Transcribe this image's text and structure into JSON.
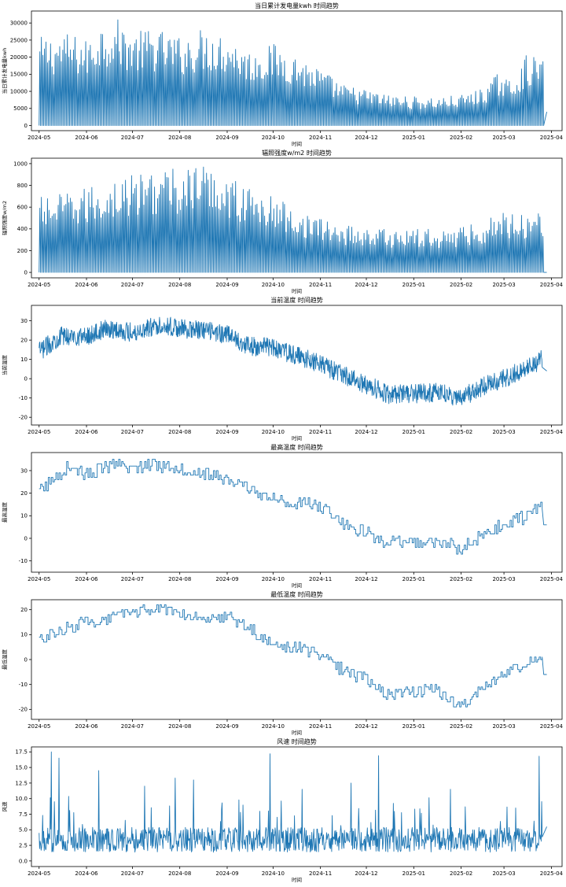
{
  "chart_data": [
    {
      "type": "line",
      "title": "当日累计发电量kwh 时间趋势",
      "xlabel": "时间",
      "ylabel": "当日累计发电量kwh",
      "xticks": [
        "2024-05",
        "2024-06",
        "2024-07",
        "2024-08",
        "2024-09",
        "2024-10",
        "2024-11",
        "2024-12",
        "2025-01",
        "2025-02",
        "2025-03",
        "2025-04"
      ],
      "xlim": [
        "2024-04-26",
        "2025-04-08"
      ],
      "ylim": [
        -1500,
        33500
      ],
      "yticks": [
        0,
        5000,
        10000,
        15000,
        20000,
        25000,
        30000
      ],
      "grid": false,
      "style": "daily-cycle",
      "envelope": [
        {
          "x": "2024-05-01",
          "y": 26000
        },
        {
          "x": "2024-05-20",
          "y": 27000
        },
        {
          "x": "2024-06-01",
          "y": 25000
        },
        {
          "x": "2024-06-10",
          "y": 30500
        },
        {
          "x": "2024-06-20",
          "y": 31500
        },
        {
          "x": "2024-07-01",
          "y": 27500
        },
        {
          "x": "2024-07-15",
          "y": 28500
        },
        {
          "x": "2024-08-01",
          "y": 26000
        },
        {
          "x": "2024-08-15",
          "y": 28500
        },
        {
          "x": "2024-09-01",
          "y": 27000
        },
        {
          "x": "2024-09-15",
          "y": 22000
        },
        {
          "x": "2024-10-01",
          "y": 24000
        },
        {
          "x": "2024-10-15",
          "y": 21000
        },
        {
          "x": "2024-11-01",
          "y": 16500
        },
        {
          "x": "2024-11-15",
          "y": 12000
        },
        {
          "x": "2024-12-01",
          "y": 10500
        },
        {
          "x": "2024-12-15",
          "y": 9000
        },
        {
          "x": "2025-01-01",
          "y": 8500
        },
        {
          "x": "2025-01-15",
          "y": 8200
        },
        {
          "x": "2025-02-01",
          "y": 9000
        },
        {
          "x": "2025-02-15",
          "y": 11000
        },
        {
          "x": "2025-02-25",
          "y": 15500
        },
        {
          "x": "2025-03-05",
          "y": 13000
        },
        {
          "x": "2025-03-15",
          "y": 20500
        },
        {
          "x": "2025-03-26",
          "y": 20000
        }
      ],
      "end_value": 4000
    },
    {
      "type": "line",
      "title": "辐照强度w/m2 时间趋势",
      "xlabel": "时间",
      "ylabel": "辐照强度w/m2",
      "xticks": [
        "2024-05",
        "2024-06",
        "2024-07",
        "2024-08",
        "2024-09",
        "2024-10",
        "2024-11",
        "2024-12",
        "2025-01",
        "2025-02",
        "2025-03",
        "2025-04"
      ],
      "xlim": [
        "2024-04-26",
        "2025-04-08"
      ],
      "ylim": [
        -50,
        1050
      ],
      "yticks": [
        0,
        200,
        400,
        600,
        800,
        1000
      ],
      "grid": false,
      "style": "daily-cycle",
      "envelope": [
        {
          "x": "2024-05-01",
          "y": 700
        },
        {
          "x": "2024-05-15",
          "y": 720
        },
        {
          "x": "2024-06-01",
          "y": 780
        },
        {
          "x": "2024-06-15",
          "y": 850
        },
        {
          "x": "2024-07-01",
          "y": 900
        },
        {
          "x": "2024-07-15",
          "y": 960
        },
        {
          "x": "2024-08-01",
          "y": 950
        },
        {
          "x": "2024-08-15",
          "y": 1000
        },
        {
          "x": "2024-09-01",
          "y": 900
        },
        {
          "x": "2024-09-15",
          "y": 780
        },
        {
          "x": "2024-10-01",
          "y": 700
        },
        {
          "x": "2024-10-15",
          "y": 600
        },
        {
          "x": "2024-11-01",
          "y": 500
        },
        {
          "x": "2024-11-15",
          "y": 450
        },
        {
          "x": "2024-12-01",
          "y": 420
        },
        {
          "x": "2024-12-15",
          "y": 400
        },
        {
          "x": "2025-01-01",
          "y": 400
        },
        {
          "x": "2025-01-15",
          "y": 400
        },
        {
          "x": "2025-02-01",
          "y": 420
        },
        {
          "x": "2025-02-15",
          "y": 480
        },
        {
          "x": "2025-03-01",
          "y": 570
        },
        {
          "x": "2025-03-15",
          "y": 560
        },
        {
          "x": "2025-03-26",
          "y": 600
        }
      ],
      "end_value": 0
    },
    {
      "type": "line",
      "title": "当前温度 时间趋势",
      "xlabel": "时间",
      "ylabel": "当前温度",
      "xticks": [
        "2024-05",
        "2024-06",
        "2024-07",
        "2024-08",
        "2024-09",
        "2024-10",
        "2024-11",
        "2024-12",
        "2025-01",
        "2025-02",
        "2025-03",
        "2025-04"
      ],
      "xlim": [
        "2024-04-26",
        "2025-04-08"
      ],
      "ylim": [
        -24,
        38
      ],
      "yticks": [
        -20,
        -10,
        0,
        10,
        20,
        30
      ],
      "grid": false,
      "style": "noisy",
      "amplitude": 5,
      "trend": [
        {
          "x": "2024-05-01",
          "y": 14
        },
        {
          "x": "2024-05-15",
          "y": 22
        },
        {
          "x": "2024-06-01",
          "y": 22
        },
        {
          "x": "2024-06-15",
          "y": 26
        },
        {
          "x": "2024-07-01",
          "y": 24
        },
        {
          "x": "2024-07-20",
          "y": 28
        },
        {
          "x": "2024-08-01",
          "y": 26
        },
        {
          "x": "2024-08-15",
          "y": 25
        },
        {
          "x": "2024-09-01",
          "y": 23
        },
        {
          "x": "2024-09-15",
          "y": 17
        },
        {
          "x": "2024-10-01",
          "y": 16
        },
        {
          "x": "2024-10-15",
          "y": 12
        },
        {
          "x": "2024-11-01",
          "y": 8
        },
        {
          "x": "2024-11-15",
          "y": 2
        },
        {
          "x": "2024-12-01",
          "y": -3
        },
        {
          "x": "2024-12-15",
          "y": -8
        },
        {
          "x": "2025-01-01",
          "y": -8
        },
        {
          "x": "2025-01-15",
          "y": -7
        },
        {
          "x": "2025-02-01",
          "y": -10
        },
        {
          "x": "2025-02-15",
          "y": -4
        },
        {
          "x": "2025-03-01",
          "y": 0
        },
        {
          "x": "2025-03-15",
          "y": 5
        },
        {
          "x": "2025-03-26",
          "y": 10
        }
      ],
      "end_value": 4
    },
    {
      "type": "line",
      "title": "最高温度 时间趋势",
      "xlabel": "时间",
      "ylabel": "最高温度",
      "xticks": [
        "2024-05",
        "2024-06",
        "2024-07",
        "2024-08",
        "2024-09",
        "2024-10",
        "2024-11",
        "2024-12",
        "2025-01",
        "2025-02",
        "2025-03",
        "2025-04"
      ],
      "xlim": [
        "2024-04-26",
        "2025-04-08"
      ],
      "ylim": [
        -15,
        38
      ],
      "yticks": [
        -10,
        0,
        10,
        20,
        30
      ],
      "grid": false,
      "style": "step",
      "amplitude": 3,
      "trend": [
        {
          "x": "2024-05-01",
          "y": 21
        },
        {
          "x": "2024-05-10",
          "y": 26
        },
        {
          "x": "2024-05-20",
          "y": 32
        },
        {
          "x": "2024-06-01",
          "y": 28
        },
        {
          "x": "2024-06-15",
          "y": 32
        },
        {
          "x": "2024-07-01",
          "y": 31
        },
        {
          "x": "2024-07-15",
          "y": 33
        },
        {
          "x": "2024-08-01",
          "y": 31
        },
        {
          "x": "2024-08-15",
          "y": 29
        },
        {
          "x": "2024-09-01",
          "y": 26
        },
        {
          "x": "2024-09-15",
          "y": 22
        },
        {
          "x": "2024-10-01",
          "y": 17
        },
        {
          "x": "2024-10-15",
          "y": 16
        },
        {
          "x": "2024-11-01",
          "y": 14
        },
        {
          "x": "2024-11-15",
          "y": 7
        },
        {
          "x": "2024-12-01",
          "y": 2
        },
        {
          "x": "2024-12-15",
          "y": -2
        },
        {
          "x": "2025-01-01",
          "y": -2
        },
        {
          "x": "2025-01-15",
          "y": -1
        },
        {
          "x": "2025-02-01",
          "y": -5
        },
        {
          "x": "2025-02-15",
          "y": 2
        },
        {
          "x": "2025-03-01",
          "y": 6
        },
        {
          "x": "2025-03-15",
          "y": 10
        },
        {
          "x": "2025-03-26",
          "y": 14
        }
      ],
      "end_value": 6
    },
    {
      "type": "line",
      "title": "最低温度 时间趋势",
      "xlabel": "时间",
      "ylabel": "最低温度",
      "xticks": [
        "2024-05",
        "2024-06",
        "2024-07",
        "2024-08",
        "2024-09",
        "2024-10",
        "2024-11",
        "2024-12",
        "2025-01",
        "2025-02",
        "2025-03",
        "2025-04"
      ],
      "xlim": [
        "2024-04-26",
        "2025-04-08"
      ],
      "ylim": [
        -24,
        24
      ],
      "yticks": [
        -20,
        -10,
        0,
        10,
        20
      ],
      "grid": false,
      "style": "step",
      "amplitude": 2.5,
      "trend": [
        {
          "x": "2024-05-01",
          "y": 8
        },
        {
          "x": "2024-05-10",
          "y": 10
        },
        {
          "x": "2024-05-25",
          "y": 14
        },
        {
          "x": "2024-06-15",
          "y": 16
        },
        {
          "x": "2024-07-01",
          "y": 19
        },
        {
          "x": "2024-07-15",
          "y": 20
        },
        {
          "x": "2024-08-01",
          "y": 19
        },
        {
          "x": "2024-08-15",
          "y": 17
        },
        {
          "x": "2024-09-01",
          "y": 17
        },
        {
          "x": "2024-09-15",
          "y": 13
        },
        {
          "x": "2024-10-01",
          "y": 5
        },
        {
          "x": "2024-10-15",
          "y": 5
        },
        {
          "x": "2024-11-01",
          "y": 2
        },
        {
          "x": "2024-11-15",
          "y": -4
        },
        {
          "x": "2024-12-01",
          "y": -8
        },
        {
          "x": "2024-12-15",
          "y": -14
        },
        {
          "x": "2025-01-01",
          "y": -13
        },
        {
          "x": "2025-01-15",
          "y": -12
        },
        {
          "x": "2025-02-01",
          "y": -19
        },
        {
          "x": "2025-02-15",
          "y": -12
        },
        {
          "x": "2025-03-01",
          "y": -6
        },
        {
          "x": "2025-03-15",
          "y": -1
        },
        {
          "x": "2025-03-26",
          "y": 1
        }
      ],
      "end_value": -6
    },
    {
      "type": "line",
      "title": "风速 时间趋势",
      "xlabel": "时间",
      "ylabel": "风速",
      "xticks": [
        "2024-05",
        "2024-06",
        "2024-07",
        "2024-08",
        "2024-09",
        "2024-10",
        "2024-11",
        "2024-12",
        "2025-01",
        "2025-02",
        "2025-03",
        "2025-04"
      ],
      "xlim": [
        "2024-04-26",
        "2025-04-08"
      ],
      "ylim": [
        -0.9,
        18.3
      ],
      "yticks": [
        0.0,
        2.5,
        5.0,
        7.5,
        10.0,
        12.5,
        15.0,
        17.5
      ],
      "grid": false,
      "style": "spiky",
      "base": 2.8,
      "peaks": [
        {
          "x": "2024-05-09",
          "y": 17.5
        },
        {
          "x": "2024-05-14",
          "y": 16.5
        },
        {
          "x": "2024-06-09",
          "y": 14.5
        },
        {
          "x": "2024-07-09",
          "y": 12.0
        },
        {
          "x": "2024-07-29",
          "y": 13.3
        },
        {
          "x": "2024-08-10",
          "y": 13.0
        },
        {
          "x": "2024-09-29",
          "y": 17.2
        },
        {
          "x": "2024-10-20",
          "y": 11.5
        },
        {
          "x": "2024-11-21",
          "y": 12.5
        },
        {
          "x": "2024-12-09",
          "y": 16.9
        },
        {
          "x": "2025-01-25",
          "y": 11.5
        },
        {
          "x": "2025-03-24",
          "y": 16.8
        },
        {
          "x": "2025-03-27",
          "y": 12.8
        }
      ],
      "end_value": 5.5
    }
  ]
}
